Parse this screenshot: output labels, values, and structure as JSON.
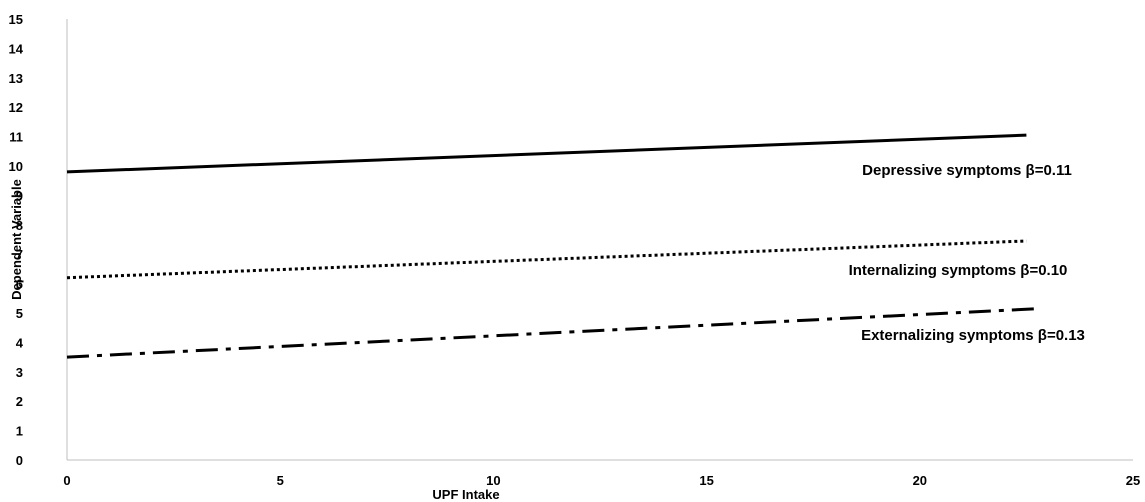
{
  "chart_data": {
    "type": "line",
    "title": "",
    "xlabel": "UPF Intake",
    "ylabel": "Dependent Variable",
    "xlim": [
      0,
      25
    ],
    "ylim": [
      0,
      15
    ],
    "x_ticks": [
      "0",
      "5",
      "10",
      "15",
      "20",
      "25"
    ],
    "y_ticks": [
      "0",
      "1",
      "2",
      "3",
      "4",
      "5",
      "6",
      "7",
      "8",
      "9",
      "10",
      "11",
      "12",
      "13",
      "14",
      "15"
    ],
    "grid": false,
    "legend": "none",
    "series": [
      {
        "name": "Depressive symptoms β=0.11",
        "style": "solid",
        "x": [
          0,
          22.5
        ],
        "y": [
          9.8,
          11.05
        ]
      },
      {
        "name": "Internalizing symptoms β=0.10",
        "style": "dotted",
        "x": [
          0,
          22.5
        ],
        "y": [
          6.2,
          7.45
        ]
      },
      {
        "name": "Externalizing symptoms β=0.13",
        "style": "dash-dot",
        "x": [
          0,
          22.8
        ],
        "y": [
          3.5,
          5.15
        ]
      }
    ],
    "colors": {
      "lines": "#000000",
      "axis": "#bfbfbf",
      "text": "#000000",
      "background": "#ffffff"
    }
  }
}
